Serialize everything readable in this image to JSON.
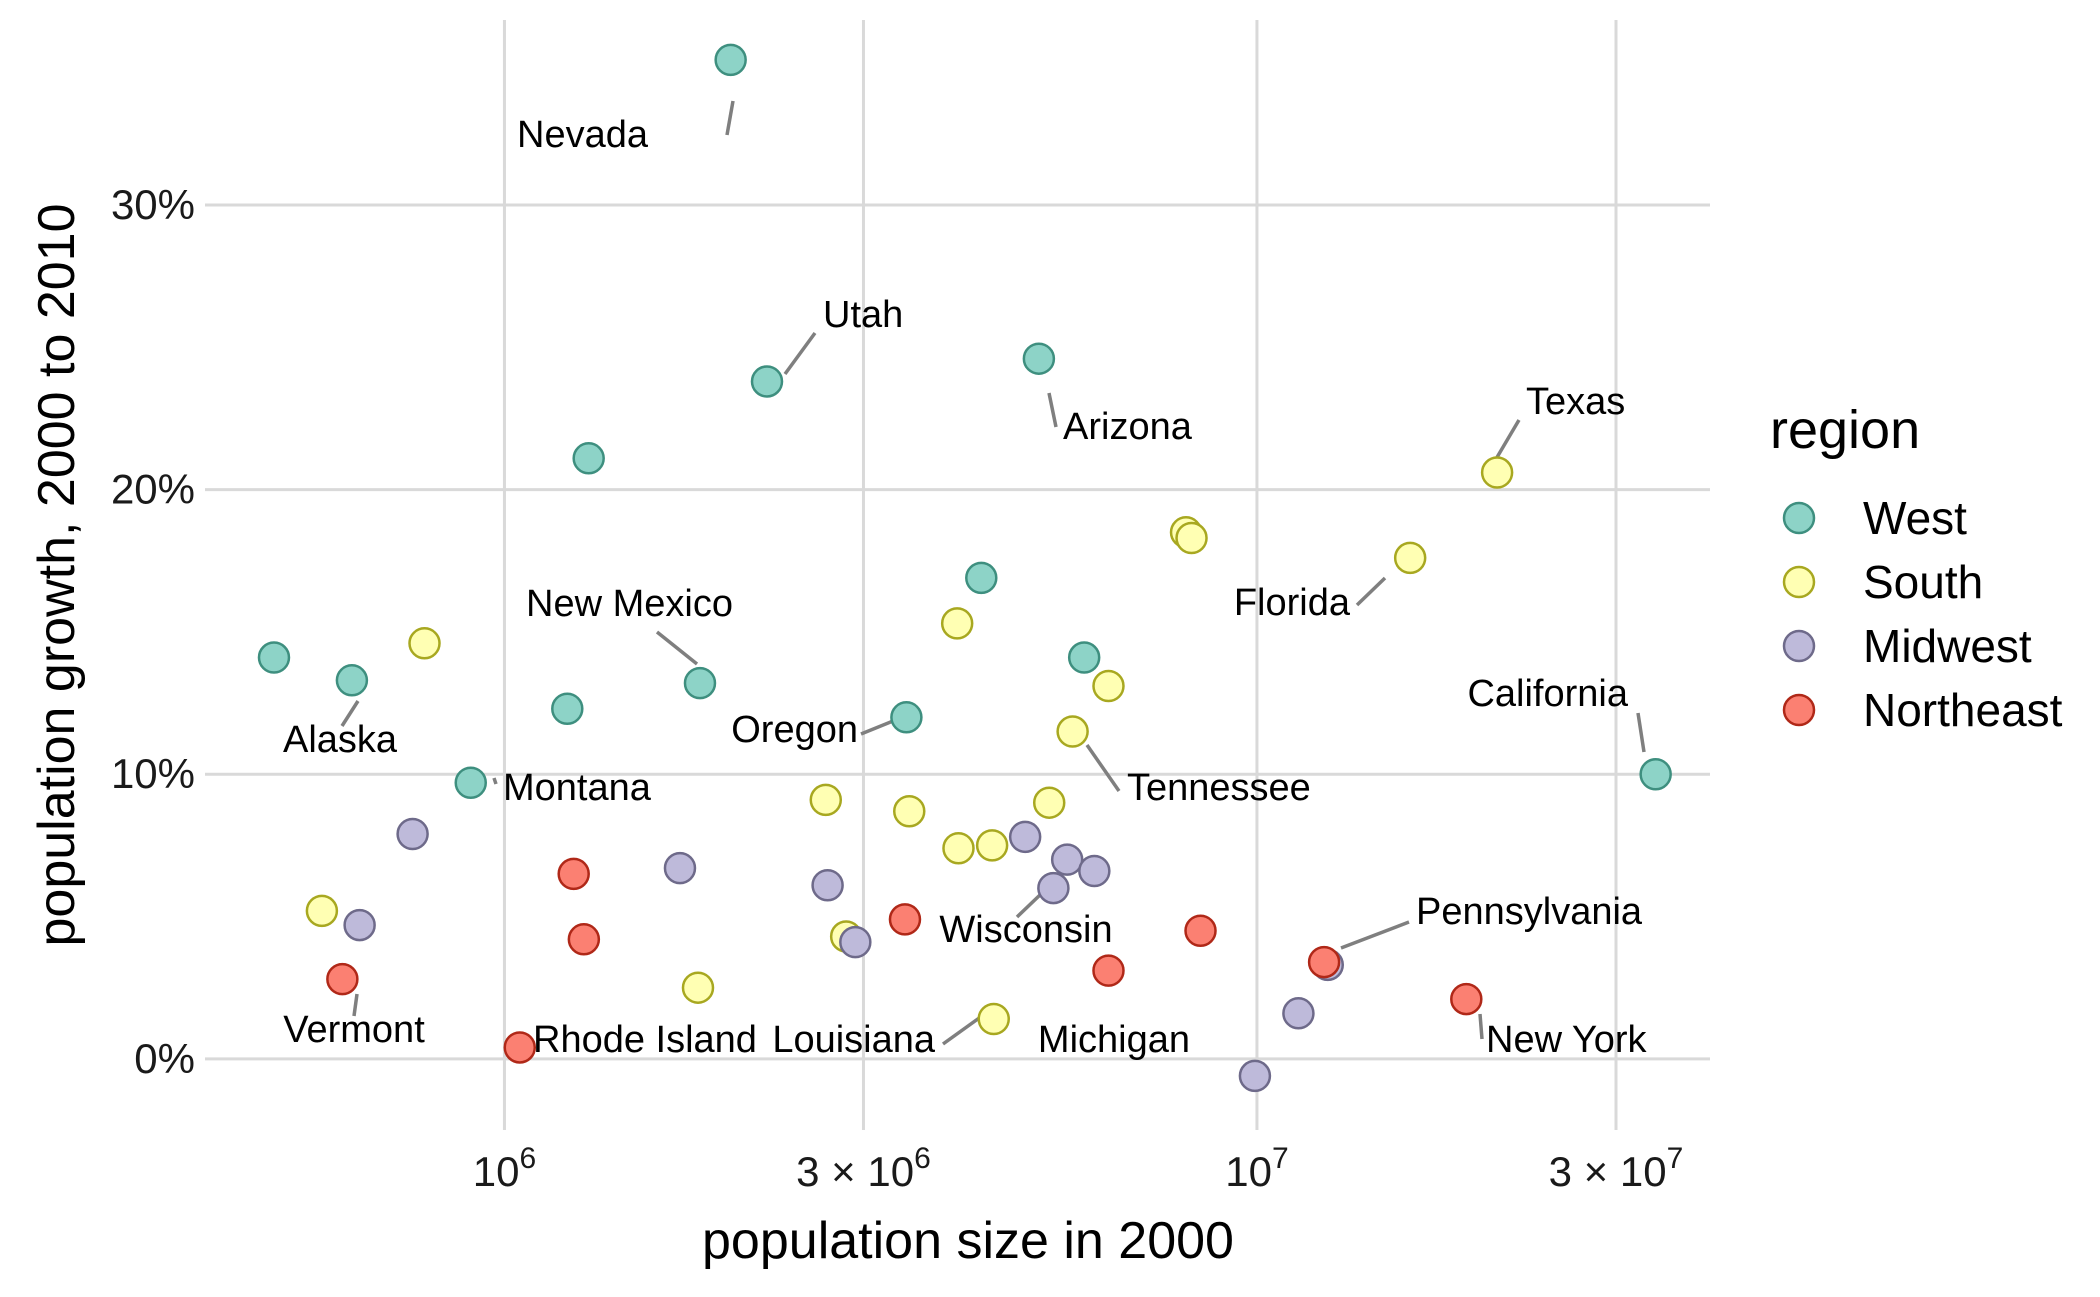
{
  "colors": {
    "West": {
      "fill": "#8DD3C7",
      "stroke": "#3E8F7F"
    },
    "South": {
      "fill": "#FFFFB3",
      "stroke": "#A8A820"
    },
    "Midwest": {
      "fill": "#BEBADA",
      "stroke": "#6E6A8A"
    },
    "Northeast": {
      "fill": "#FB8072",
      "stroke": "#B02818"
    }
  },
  "chart_data": {
    "type": "scatter",
    "xlabel": "population size in 2000",
    "ylabel": "population growth, 2000 to 2010",
    "x_scale": "log10",
    "xlim": [
      400000,
      40000000
    ],
    "ylim": [
      -2.5,
      36.5
    ],
    "x_ticks": [
      {
        "value": 1000000,
        "mant": "",
        "exp": "6"
      },
      {
        "value": 3000000,
        "mant": "3 × ",
        "exp": "6"
      },
      {
        "value": 10000000,
        "mant": "",
        "exp": "7"
      },
      {
        "value": 30000000,
        "mant": "3 × ",
        "exp": "7"
      }
    ],
    "y_ticks": [
      {
        "value": 0,
        "label": "0%"
      },
      {
        "value": 10,
        "label": "10%"
      },
      {
        "value": 20,
        "label": "20%"
      },
      {
        "value": 30,
        "label": "30%"
      }
    ],
    "grid": true,
    "legend": {
      "title": "region",
      "position": "right",
      "entries": [
        "West",
        "South",
        "Midwest",
        "Northeast"
      ]
    },
    "points": [
      {
        "x": 1998000,
        "y": 35.1,
        "region": "West",
        "label": "Nevada"
      },
      {
        "x": 2233000,
        "y": 23.8,
        "region": "West",
        "label": "Utah"
      },
      {
        "x": 1294000,
        "y": 21.1,
        "region": "West"
      },
      {
        "x": 5131000,
        "y": 24.6,
        "region": "West",
        "label": "Arizona"
      },
      {
        "x": 4302000,
        "y": 16.9,
        "region": "West"
      },
      {
        "x": 5894000,
        "y": 14.1,
        "region": "West"
      },
      {
        "x": 3421000,
        "y": 12.0,
        "region": "West",
        "label": "Oregon"
      },
      {
        "x": 1819000,
        "y": 13.2,
        "region": "West",
        "label": "New Mexico"
      },
      {
        "x": 1212000,
        "y": 12.3,
        "region": "West"
      },
      {
        "x": 902000,
        "y": 9.7,
        "region": "West",
        "label": "Montana"
      },
      {
        "x": 627000,
        "y": 13.3,
        "region": "West",
        "label": "Alaska"
      },
      {
        "x": 494000,
        "y": 14.1,
        "region": "West"
      },
      {
        "x": 33872000,
        "y": 10.0,
        "region": "West",
        "label": "California"
      },
      {
        "x": 20852000,
        "y": 20.6,
        "region": "South",
        "label": "Texas"
      },
      {
        "x": 15982000,
        "y": 17.6,
        "region": "South",
        "label": "Florida"
      },
      {
        "x": 8049000,
        "y": 18.5,
        "region": "South"
      },
      {
        "x": 8186000,
        "y": 18.3,
        "region": "South"
      },
      {
        "x": 3996000,
        "y": 15.3,
        "region": "South"
      },
      {
        "x": 783000,
        "y": 14.6,
        "region": "South"
      },
      {
        "x": 6349000,
        "y": 13.1,
        "region": "South"
      },
      {
        "x": 5689000,
        "y": 11.5,
        "region": "South",
        "label": "Tennessee"
      },
      {
        "x": 2673000,
        "y": 9.1,
        "region": "South"
      },
      {
        "x": 3451000,
        "y": 8.7,
        "region": "South"
      },
      {
        "x": 5296000,
        "y": 9.0,
        "region": "South"
      },
      {
        "x": 4012000,
        "y": 7.4,
        "region": "South"
      },
      {
        "x": 4447000,
        "y": 7.5,
        "region": "South"
      },
      {
        "x": 2845000,
        "y": 4.3,
        "region": "South"
      },
      {
        "x": 1808000,
        "y": 2.5,
        "region": "South"
      },
      {
        "x": 4469000,
        "y": 1.4,
        "region": "South",
        "label": "Louisiana"
      },
      {
        "x": 572000,
        "y": 5.2,
        "region": "South"
      },
      {
        "x": 755000,
        "y": 7.9,
        "region": "Midwest"
      },
      {
        "x": 1711000,
        "y": 6.7,
        "region": "Midwest"
      },
      {
        "x": 2688000,
        "y": 6.1,
        "region": "Midwest"
      },
      {
        "x": 4920000,
        "y": 7.8,
        "region": "Midwest"
      },
      {
        "x": 5595000,
        "y": 7.0,
        "region": "Midwest"
      },
      {
        "x": 6080000,
        "y": 6.6,
        "region": "Midwest"
      },
      {
        "x": 5364000,
        "y": 6.0,
        "region": "Midwest",
        "label": "Wisconsin"
      },
      {
        "x": 2926000,
        "y": 4.1,
        "region": "Midwest"
      },
      {
        "x": 642000,
        "y": 4.7,
        "region": "Midwest"
      },
      {
        "x": 12419000,
        "y": 3.3,
        "region": "Midwest"
      },
      {
        "x": 11353000,
        "y": 1.6,
        "region": "Midwest"
      },
      {
        "x": 9938000,
        "y": -0.6,
        "region": "Midwest",
        "label": "Michigan"
      },
      {
        "x": 1236000,
        "y": 6.5,
        "region": "Northeast"
      },
      {
        "x": 1275000,
        "y": 4.2,
        "region": "Northeast"
      },
      {
        "x": 3406000,
        "y": 4.9,
        "region": "Northeast"
      },
      {
        "x": 8414000,
        "y": 4.5,
        "region": "Northeast"
      },
      {
        "x": 6349000,
        "y": 3.1,
        "region": "Northeast"
      },
      {
        "x": 12281000,
        "y": 3.4,
        "region": "Northeast",
        "label": "Pennsylvania"
      },
      {
        "x": 18976000,
        "y": 2.1,
        "region": "Northeast",
        "label": "New York"
      },
      {
        "x": 609000,
        "y": 2.8,
        "region": "Northeast",
        "label": "Vermont"
      },
      {
        "x": 1048000,
        "y": 0.4,
        "region": "Northeast",
        "label": "Rhode Island"
      }
    ]
  }
}
